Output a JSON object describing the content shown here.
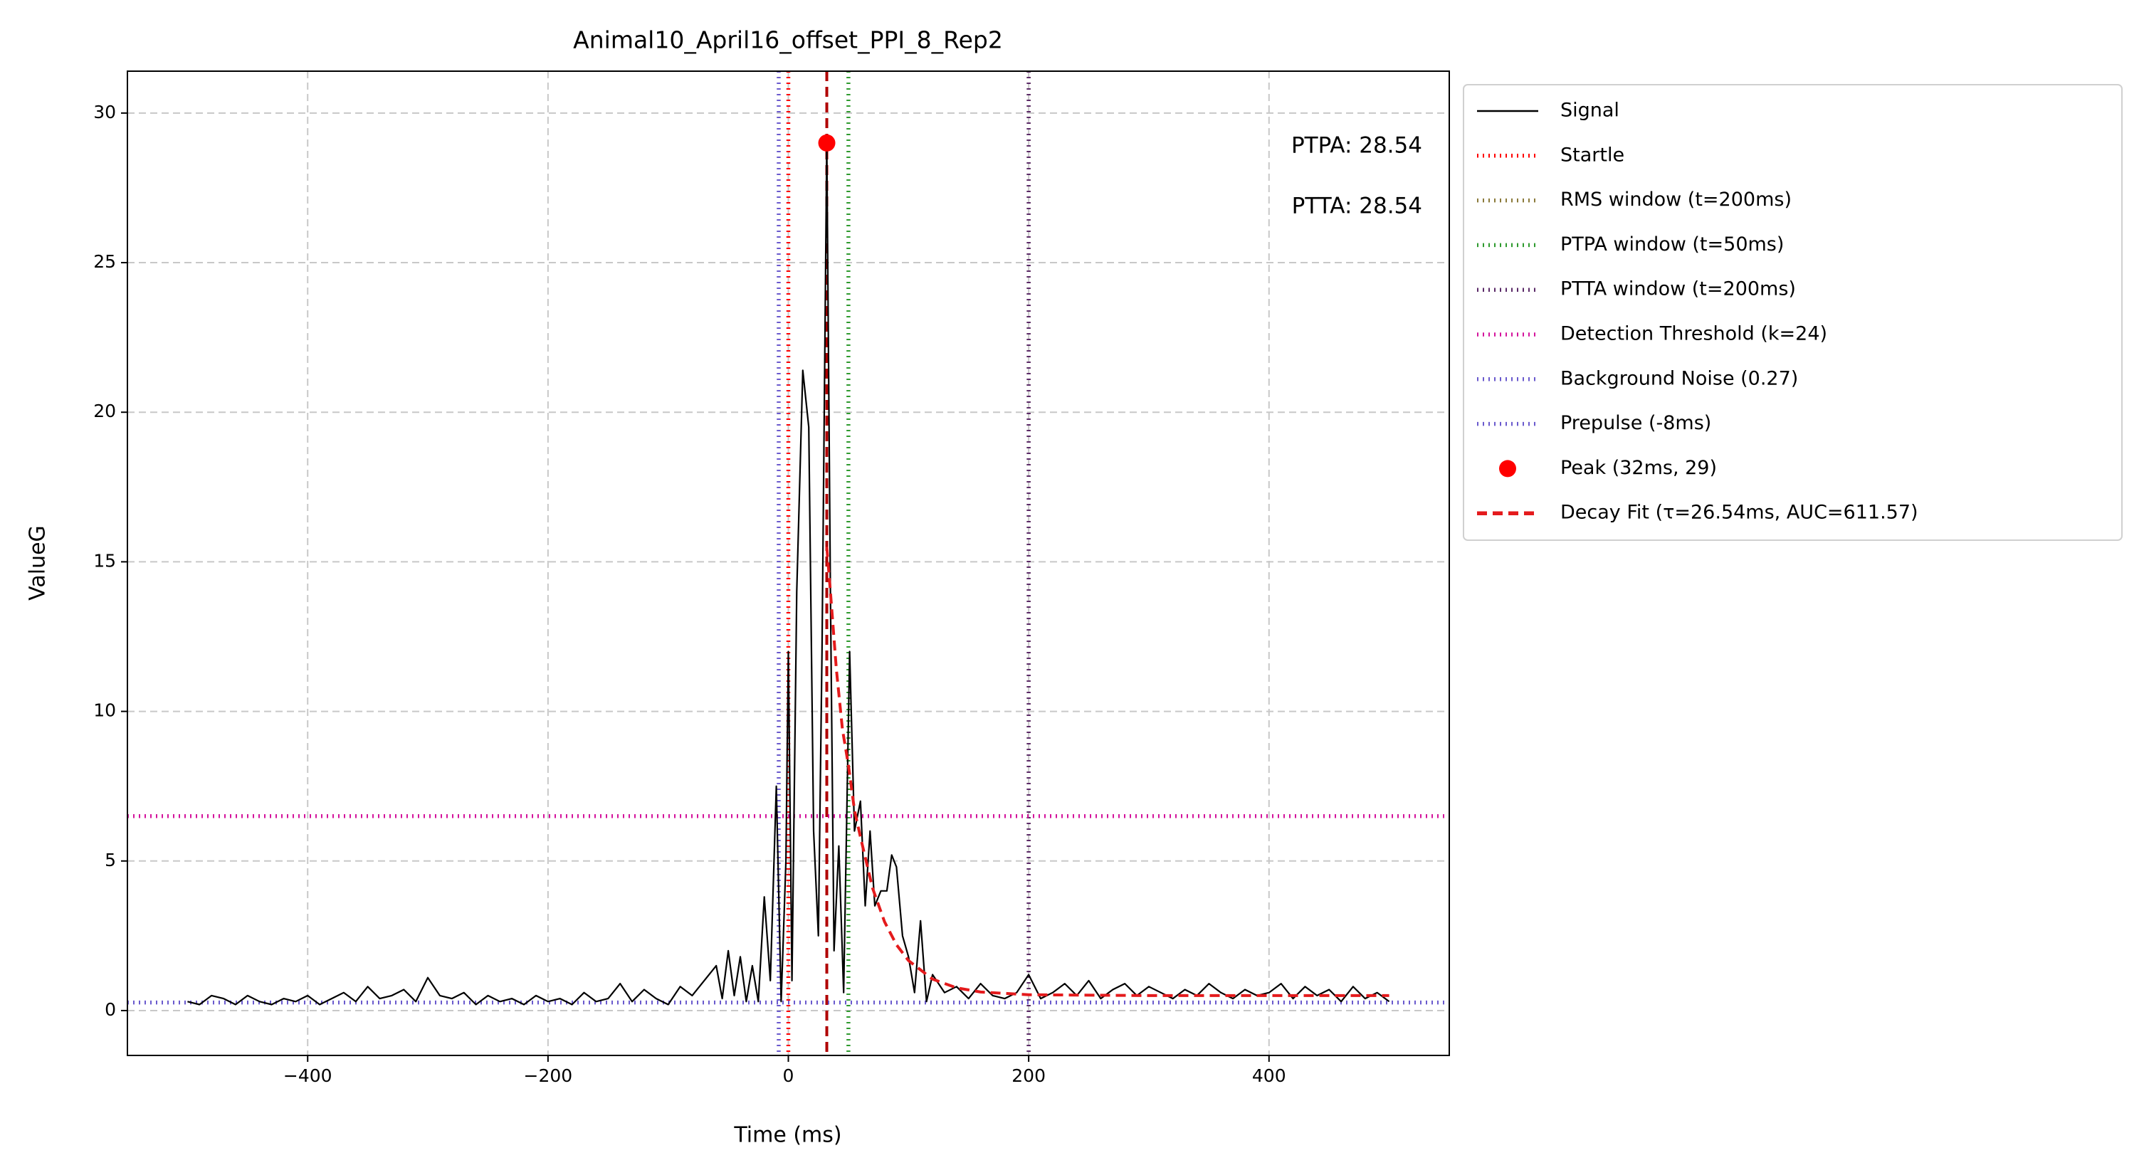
{
  "chart_data": {
    "type": "line",
    "title": "Animal10_April16_offset_PPI_8_Rep2",
    "x_label": "Time (ms)",
    "y_label": "ValueG",
    "xlim": [
      -550,
      550
    ],
    "ylim": [
      -1.5,
      31.4
    ],
    "xticks": [
      {
        "value": -400,
        "label": "−400"
      },
      {
        "value": -200,
        "label": "−200"
      },
      0,
      200,
      400
    ],
    "yticks": [
      0,
      5,
      10,
      15,
      20,
      25,
      30
    ],
    "grid": true,
    "legend": "outside upper right",
    "series": [
      {
        "name": "Signal",
        "kind": "line",
        "style": "solid",
        "color": "#000000",
        "x": [
          -500,
          -490,
          -480,
          -470,
          -460,
          -450,
          -440,
          -430,
          -420,
          -410,
          -400,
          -390,
          -380,
          -370,
          -360,
          -350,
          -340,
          -330,
          -320,
          -310,
          -300,
          -290,
          -280,
          -270,
          -260,
          -250,
          -240,
          -230,
          -220,
          -210,
          -200,
          -190,
          -180,
          -170,
          -160,
          -150,
          -140,
          -130,
          -120,
          -110,
          -100,
          -90,
          -80,
          -70,
          -60,
          -55,
          -50,
          -45,
          -40,
          -35,
          -30,
          -25,
          -20,
          -15,
          -10,
          -6,
          -2,
          0,
          3,
          7,
          12,
          17,
          21,
          25,
          28,
          32,
          35,
          38,
          42,
          46,
          51,
          55,
          60,
          64,
          68,
          72,
          77,
          82,
          86,
          90,
          95,
          100,
          105,
          110,
          115,
          120,
          130,
          140,
          150,
          160,
          170,
          180,
          190,
          200,
          210,
          220,
          230,
          240,
          250,
          260,
          270,
          280,
          290,
          300,
          310,
          320,
          330,
          340,
          350,
          360,
          370,
          380,
          390,
          400,
          410,
          420,
          430,
          440,
          450,
          460,
          470,
          480,
          490,
          500
        ],
        "values": [
          0.3,
          0.2,
          0.5,
          0.4,
          0.2,
          0.5,
          0.3,
          0.2,
          0.4,
          0.3,
          0.5,
          0.2,
          0.4,
          0.6,
          0.3,
          0.8,
          0.4,
          0.5,
          0.7,
          0.3,
          1.1,
          0.5,
          0.4,
          0.6,
          0.2,
          0.5,
          0.3,
          0.4,
          0.2,
          0.5,
          0.3,
          0.4,
          0.2,
          0.6,
          0.3,
          0.4,
          0.9,
          0.3,
          0.7,
          0.4,
          0.2,
          0.8,
          0.5,
          1.0,
          1.5,
          0.4,
          2.0,
          0.5,
          1.8,
          0.3,
          1.5,
          0.3,
          3.8,
          1.0,
          7.5,
          0.3,
          5.0,
          12,
          1.0,
          14,
          21.4,
          19.5,
          6,
          2.5,
          12,
          29,
          14,
          2,
          5.5,
          0.6,
          12,
          6,
          7,
          3.5,
          6,
          3.5,
          4,
          4,
          5.2,
          4.8,
          2.5,
          1.8,
          0.6,
          3.0,
          0.3,
          1.2,
          0.6,
          0.8,
          0.4,
          0.9,
          0.5,
          0.4,
          0.6,
          1.2,
          0.4,
          0.6,
          0.9,
          0.5,
          1.0,
          0.4,
          0.7,
          0.9,
          0.5,
          0.8,
          0.6,
          0.4,
          0.7,
          0.5,
          0.9,
          0.6,
          0.4,
          0.7,
          0.5,
          0.6,
          0.9,
          0.4,
          0.8,
          0.5,
          0.7,
          0.3,
          0.8,
          0.4,
          0.6,
          0.3
        ]
      },
      {
        "name": "Startle",
        "kind": "vline",
        "style": "dotted",
        "color": "#ff0000",
        "x": 0
      },
      {
        "name": "RMS window (t=200ms)",
        "kind": "vline",
        "style": "dotted",
        "color": "#8b7a3a",
        "x": 200
      },
      {
        "name": "PTPA window (t=50ms)",
        "kind": "vline",
        "style": "dotted",
        "color": "#2e9a2e",
        "x": 50
      },
      {
        "name": "PTTA window (t=200ms)",
        "kind": "vline",
        "style": "dotted",
        "color": "#5b2a68",
        "x": 200
      },
      {
        "name": "Detection Threshold (k=24)",
        "kind": "hline",
        "style": "dotted",
        "color": "#d4149c",
        "value": 6.5
      },
      {
        "name": "Background Noise (0.27)",
        "kind": "hline",
        "style": "dotted",
        "color": "#6a5acd",
        "value": 0.27
      },
      {
        "name": "Prepulse (-8ms)",
        "kind": "vline",
        "style": "dotted",
        "color": "#6a5acd",
        "x": -8
      },
      {
        "name": "Peak (32ms, 29)",
        "kind": "point",
        "color": "#ff0000",
        "x": 32,
        "value": 29
      },
      {
        "name": "Decay Fit (τ=26.54ms, AUC=611.57)",
        "kind": "line",
        "style": "dashed",
        "color": "#e41a1c",
        "x": [
          32,
          35,
          40,
          45,
          50,
          55,
          60,
          70,
          80,
          90,
          100,
          120,
          140,
          160,
          200,
          300,
          400,
          500
        ],
        "values": [
          15.5,
          14,
          11.4,
          9.4,
          8.2,
          6.7,
          5.8,
          4.1,
          2.97,
          2.2,
          1.67,
          1.05,
          0.76,
          0.62,
          0.53,
          0.5,
          0.5,
          0.5
        ]
      }
    ],
    "peak_line": {
      "x": 32,
      "color": "#b00000"
    },
    "annotations": [
      {
        "text": "PTPA: 28.54",
        "color": "#1a6fad"
      },
      {
        "text": "PTTA: 28.54",
        "color": "#d35f10"
      }
    ]
  }
}
